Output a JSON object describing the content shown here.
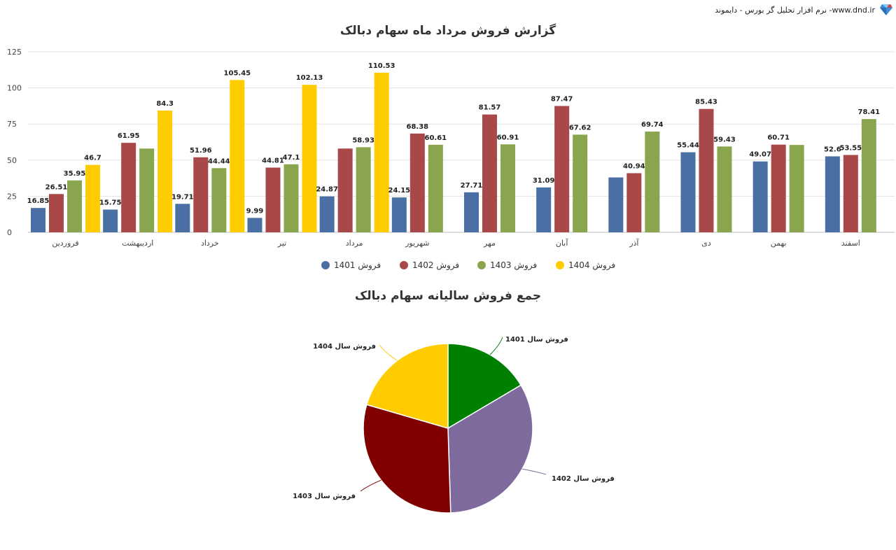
{
  "watermark": {
    "text": "نرم افزار تحلیل گر بورس - دایموند -www.dnd.ir",
    "icon": "diamond-logo"
  },
  "chart_data": [
    {
      "type": "bar",
      "title": "گزارش فروش مرداد ماه سهام دبالک",
      "categories": [
        "فروردین",
        "اردیبهشت",
        "خرداد",
        "تیر",
        "مرداد",
        "شهریور",
        "مهر",
        "آبان",
        "آذر",
        "دی",
        "بهمن",
        "اسفند"
      ],
      "series": [
        {
          "name": "فروش 1401",
          "color": "#4a6fa5",
          "values": [
            16.85,
            15.75,
            19.71,
            9.99,
            24.87,
            24.15,
            27.71,
            31.09,
            38.0,
            55.44,
            49.07,
            52.6
          ],
          "labels": [
            "16.85",
            "15.75",
            "19.71",
            "9.99",
            "24.87",
            "24.15",
            "27.71",
            "31.09",
            "",
            "55.44",
            "49.07",
            "52.6"
          ]
        },
        {
          "name": "فروش 1402",
          "color": "#a84848",
          "values": [
            26.51,
            61.95,
            51.96,
            44.81,
            58.0,
            68.38,
            81.57,
            87.47,
            40.94,
            85.43,
            60.71,
            53.55
          ],
          "labels": [
            "26.51",
            "61.95",
            "51.96",
            "44.81",
            "",
            "68.38",
            "81.57",
            "87.47",
            "40.94",
            "85.43",
            "60.71",
            "53.55"
          ]
        },
        {
          "name": "فروش 1403",
          "color": "#89a64e",
          "values": [
            35.95,
            58.0,
            44.44,
            47.1,
            58.93,
            60.61,
            60.91,
            67.62,
            69.74,
            59.43,
            60.5,
            78.41
          ],
          "labels": [
            "35.95",
            "",
            "44.44",
            "47.1",
            "58.93",
            "60.61",
            "60.91",
            "67.62",
            "69.74",
            "59.43",
            "",
            "78.41"
          ]
        },
        {
          "name": "فروش 1404",
          "color": "#ffcc00",
          "values": [
            46.7,
            84.3,
            105.45,
            102.13,
            110.53,
            null,
            null,
            null,
            null,
            null,
            null,
            null
          ],
          "labels": [
            "46.7",
            "84.3",
            "105.45",
            "102.13",
            "110.53",
            "",
            "",
            "",
            "",
            "",
            "",
            ""
          ]
        }
      ],
      "yticks": [
        0,
        25,
        50,
        75,
        100,
        125
      ],
      "ylim": [
        0,
        125
      ],
      "grid": true,
      "legend": "bottom"
    },
    {
      "type": "pie",
      "title": "جمع فروش سالیانه سهام دبالک",
      "slices": [
        {
          "label": "فروش سال 1401",
          "value": 16.5,
          "color": "#008000"
        },
        {
          "label": "فروش سال 1402",
          "value": 33.0,
          "color": "#7f6a9e"
        },
        {
          "label": "فروش سال 1403",
          "value": 30.0,
          "color": "#800000"
        },
        {
          "label": "فروش سال 1404",
          "value": 20.5,
          "color": "#ffcc00"
        }
      ]
    }
  ]
}
